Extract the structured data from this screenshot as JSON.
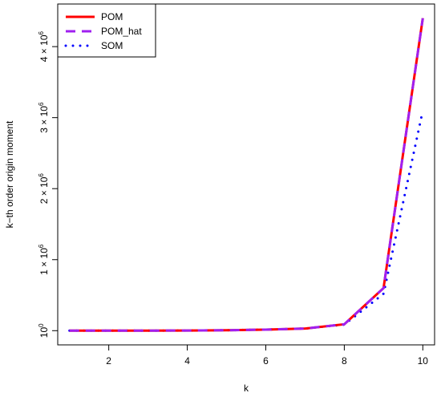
{
  "chart_data": {
    "type": "line",
    "title": "",
    "xlabel": "k",
    "ylabel": "k−th order origin moment",
    "xlim": [
      0.7,
      10.3
    ],
    "ylim": [
      -200000,
      4600000
    ],
    "grid": false,
    "legend_position": "top-left",
    "x_ticks": [
      2,
      4,
      6,
      8,
      10
    ],
    "x_tick_labels": [
      "2",
      "4",
      "6",
      "8",
      "10"
    ],
    "y_ticks": [
      0,
      1000000,
      2000000,
      3000000,
      4000000
    ],
    "y_tick_labels": [
      {
        "base": "10",
        "sup": "0"
      },
      {
        "base": "1 × 10",
        "sup": "6"
      },
      {
        "base": "2 × 10",
        "sup": "6"
      },
      {
        "base": "3 × 10",
        "sup": "6"
      },
      {
        "base": "4 × 10",
        "sup": "6"
      }
    ],
    "x": [
      1,
      2,
      3,
      4,
      5,
      6,
      7,
      8,
      9,
      10
    ],
    "series": [
      {
        "name": "POM",
        "color": "#ff0000",
        "style": "solid",
        "values": [
          0,
          100,
          500,
          2000,
          6000,
          15000,
          30000,
          90000,
          600000,
          4400000
        ]
      },
      {
        "name": "POM_hat",
        "color": "#a020f0",
        "style": "dashed",
        "values": [
          0,
          100,
          500,
          2000,
          6000,
          15000,
          30000,
          90000,
          600000,
          4400000
        ]
      },
      {
        "name": "SOM",
        "color": "#0000ff",
        "style": "dotted",
        "values": [
          0,
          100,
          500,
          2000,
          6000,
          15000,
          30000,
          85000,
          520000,
          3100000
        ]
      }
    ]
  }
}
